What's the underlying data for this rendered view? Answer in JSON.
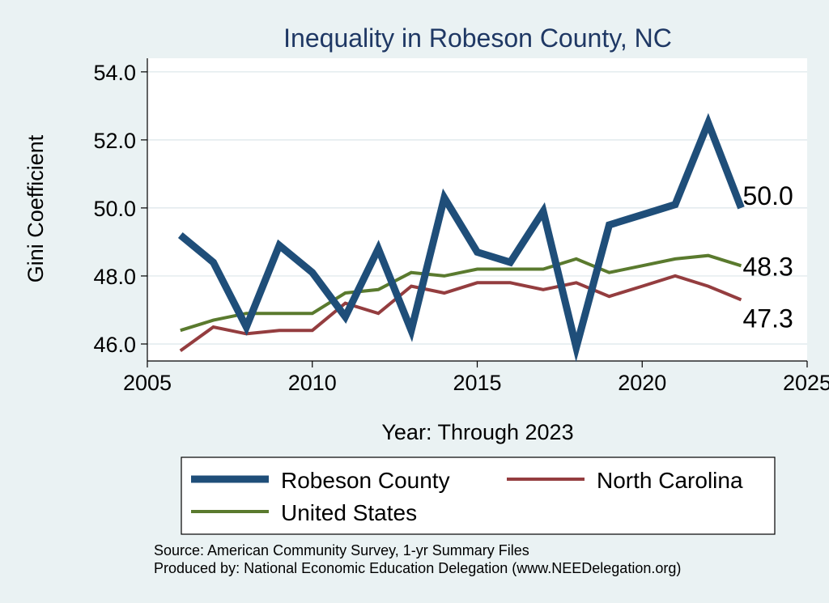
{
  "chart_data": {
    "type": "line",
    "title": "Inequality in Robeson County, NC",
    "xlabel": "Year: Through 2023",
    "ylabel": "Gini Coefficient",
    "xlim": [
      2005,
      2025
    ],
    "ylim": [
      45.5,
      54.4
    ],
    "x_ticks": [
      2005,
      2010,
      2015,
      2020,
      2025
    ],
    "y_ticks": [
      46.0,
      48.0,
      50.0,
      52.0,
      54.0
    ],
    "x_tick_labels": [
      "2005",
      "2010",
      "2015",
      "2020",
      "2025"
    ],
    "y_tick_labels": [
      "46.0",
      "48.0",
      "50.0",
      "52.0",
      "54.0"
    ],
    "grid": true,
    "x": [
      2006,
      2007,
      2008,
      2009,
      2010,
      2011,
      2012,
      2013,
      2014,
      2015,
      2016,
      2017,
      2018,
      2019,
      2020,
      2021,
      2022,
      2023
    ],
    "series": [
      {
        "name": "Robeson County",
        "color": "#1f4e79",
        "values": [
          49.2,
          48.4,
          46.5,
          48.9,
          48.1,
          46.8,
          48.8,
          46.4,
          50.3,
          48.7,
          48.4,
          49.9,
          45.9,
          49.5,
          49.8,
          50.1,
          52.5,
          50.0
        ],
        "end_label": "50.0"
      },
      {
        "name": "North Carolina",
        "color": "#943d3f",
        "values": [
          45.8,
          46.5,
          46.3,
          46.4,
          46.4,
          47.2,
          46.9,
          47.7,
          47.5,
          47.8,
          47.8,
          47.6,
          47.8,
          47.4,
          47.7,
          48.0,
          47.7,
          47.3
        ],
        "end_label": "47.3"
      },
      {
        "name": "United States",
        "color": "#5a7a2e",
        "values": [
          46.4,
          46.7,
          46.9,
          46.9,
          46.9,
          47.5,
          47.6,
          48.1,
          48.0,
          48.2,
          48.2,
          48.2,
          48.5,
          48.1,
          48.3,
          48.5,
          48.6,
          48.3
        ],
        "end_label": "48.3"
      }
    ],
    "legend": {
      "placement": "bottom",
      "entries": [
        "Robeson County",
        "North Carolina",
        "United States"
      ]
    },
    "notes": [
      "Source: American Community Survey, 1-yr Summary Files",
      "Produced by: National Economic Education Delegation (www.NEEDelegation.org)"
    ]
  },
  "colors": {
    "background": "#eaf2f3",
    "plot_background": "#ffffff",
    "title": "#1f3864",
    "grid": "#dce6ea",
    "robeson": "#1f4e79",
    "north_carolina": "#943d3f",
    "united_states": "#5a7a2e"
  }
}
